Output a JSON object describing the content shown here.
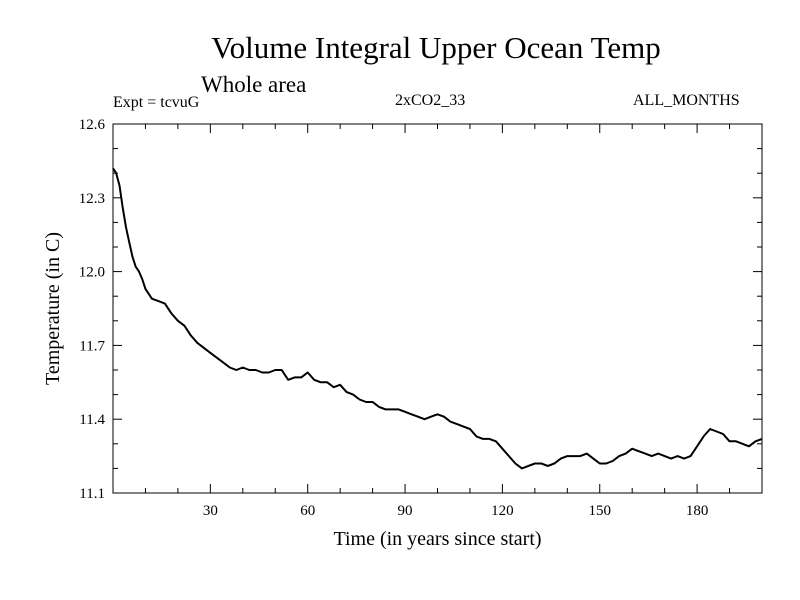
{
  "figure": {
    "title": "Volume Integral Upper Ocean Temp",
    "subtitle": "Whole area",
    "experiment_label": "Expt = tcvuG",
    "run_label": "2xCO2_33",
    "months_label": "ALL_MONTHS"
  },
  "chart_data": {
    "type": "line",
    "xlabel": "Time (in years since start)",
    "ylabel": "Temperature (in C)",
    "xlim": [
      0,
      200
    ],
    "ylim": [
      11.1,
      12.6
    ],
    "xticks": [
      30,
      60,
      90,
      120,
      150,
      180
    ],
    "xtick_labels": [
      "30",
      "60",
      "90",
      "120",
      "150",
      "180"
    ],
    "yticks": [
      11.1,
      11.4,
      11.7,
      12.0,
      12.3,
      12.6
    ],
    "ytick_labels": [
      "11.1",
      "11.4",
      "11.7",
      "12.0",
      "12.3",
      "12.6"
    ],
    "grid": false,
    "series": [
      {
        "color": "#000000",
        "x": [
          0,
          1,
          2,
          3,
          4,
          5,
          6,
          7,
          8,
          9,
          10,
          12,
          14,
          16,
          18,
          20,
          22,
          24,
          26,
          28,
          30,
          32,
          34,
          36,
          38,
          40,
          42,
          44,
          46,
          48,
          50,
          52,
          54,
          56,
          58,
          60,
          62,
          64,
          66,
          68,
          70,
          72,
          74,
          76,
          78,
          80,
          82,
          84,
          86,
          88,
          90,
          92,
          94,
          96,
          98,
          100,
          102,
          104,
          106,
          108,
          110,
          112,
          114,
          116,
          118,
          120,
          122,
          124,
          126,
          128,
          130,
          132,
          134,
          136,
          138,
          140,
          142,
          144,
          146,
          148,
          150,
          152,
          154,
          156,
          158,
          160,
          162,
          164,
          166,
          168,
          170,
          172,
          174,
          176,
          178,
          180,
          182,
          184,
          186,
          188,
          190,
          192,
          194,
          196,
          198,
          200
        ],
        "y": [
          12.42,
          12.4,
          12.35,
          12.26,
          12.18,
          12.12,
          12.06,
          12.02,
          12.0,
          11.97,
          11.93,
          11.89,
          11.88,
          11.87,
          11.83,
          11.8,
          11.78,
          11.74,
          11.71,
          11.69,
          11.67,
          11.65,
          11.63,
          11.61,
          11.6,
          11.61,
          11.6,
          11.6,
          11.59,
          11.59,
          11.6,
          11.6,
          11.56,
          11.57,
          11.57,
          11.59,
          11.56,
          11.55,
          11.55,
          11.53,
          11.54,
          11.51,
          11.5,
          11.48,
          11.47,
          11.47,
          11.45,
          11.44,
          11.44,
          11.44,
          11.43,
          11.42,
          11.41,
          11.4,
          11.41,
          11.42,
          11.41,
          11.39,
          11.38,
          11.37,
          11.36,
          11.33,
          11.32,
          11.32,
          11.31,
          11.28,
          11.25,
          11.22,
          11.2,
          11.21,
          11.22,
          11.22,
          11.21,
          11.22,
          11.24,
          11.25,
          11.25,
          11.25,
          11.26,
          11.24,
          11.22,
          11.22,
          11.23,
          11.25,
          11.26,
          11.28,
          11.27,
          11.26,
          11.25,
          11.26,
          11.25,
          11.24,
          11.25,
          11.24,
          11.25,
          11.29,
          11.33,
          11.36,
          11.35,
          11.34,
          11.31,
          11.31,
          11.3,
          11.29,
          11.31,
          11.32
        ]
      }
    ]
  }
}
